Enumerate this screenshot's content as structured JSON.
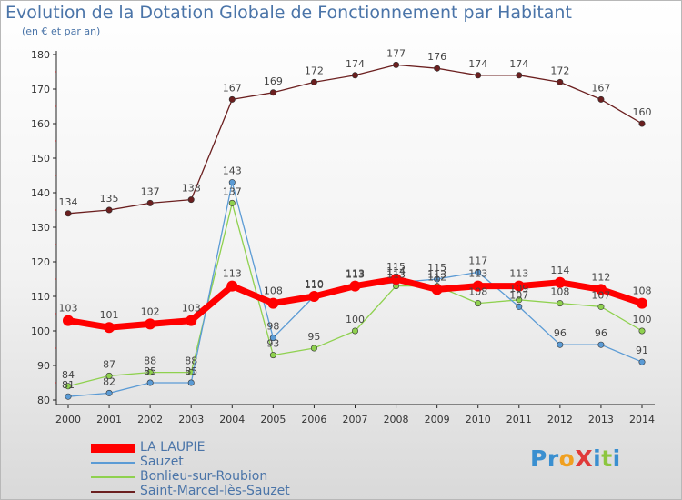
{
  "header": {
    "title": "Evolution de la Dotation Globale de Fonctionnement par Habitant",
    "subtitle": "(en € et par an)"
  },
  "logo": {
    "text": "ProXiti",
    "letters": [
      {
        "ch": "P",
        "color": "#3a8fd0"
      },
      {
        "ch": "r",
        "color": "#3a8fd0"
      },
      {
        "ch": "o",
        "color": "#f0a020"
      },
      {
        "ch": "X",
        "color": "#e03a3a"
      },
      {
        "ch": "i",
        "color": "#3a8fd0"
      },
      {
        "ch": "t",
        "color": "#8cc63f"
      },
      {
        "ch": "i",
        "color": "#3a8fd0"
      }
    ]
  },
  "chart_data": {
    "type": "line",
    "title": "Evolution de la Dotation Globale de Fonctionnement par Habitant",
    "subtitle": "(en € et par an)",
    "x": [
      "2000",
      "2001",
      "2002",
      "2003",
      "2004",
      "2005",
      "2006",
      "2007",
      "2008",
      "2009",
      "2010",
      "2011",
      "2012",
      "2013",
      "2014"
    ],
    "ylim": [
      80,
      180
    ],
    "yticks": [
      80,
      90,
      100,
      110,
      120,
      130,
      140,
      150,
      160,
      170,
      180
    ],
    "grid": false,
    "legend_position": "bottom-left",
    "series": [
      {
        "name": "Saint-Marcel-lès-Sauzet",
        "color": "#6b1f1f",
        "values": [
          134,
          135,
          137,
          138,
          167,
          169,
          172,
          174,
          177,
          176,
          174,
          174,
          172,
          167,
          160
        ]
      },
      {
        "name": "Bonlieu-sur-Roubion",
        "color": "#8fd14f",
        "values": [
          84,
          87,
          88,
          88,
          137,
          93,
          95,
          100,
          113,
          113,
          108,
          109,
          108,
          107,
          100
        ]
      },
      {
        "name": "Sauzet",
        "color": "#5b9bd5",
        "values": [
          81,
          82,
          85,
          85,
          143,
          98,
          110,
          113,
          114,
          115,
          117,
          107,
          96,
          96,
          91
        ]
      },
      {
        "name": "LA LAUPIE",
        "color": "#ff0000",
        "values": [
          103,
          101,
          102,
          103,
          113,
          108,
          110,
          113,
          115,
          112,
          113,
          113,
          114,
          112,
          108
        ]
      }
    ],
    "legend": [
      "LA LAUPIE",
      "Sauzet",
      "Bonlieu-sur-Roubion",
      "Saint-Marcel-lès-Sauzet"
    ]
  }
}
